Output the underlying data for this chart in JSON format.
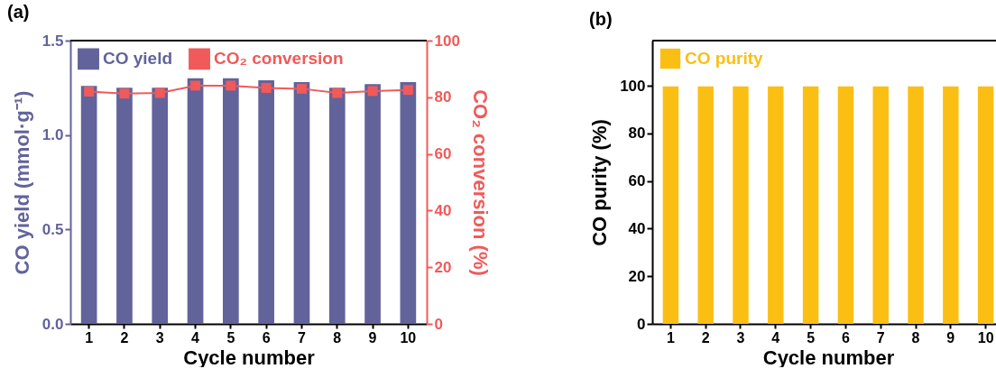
{
  "chart_data": [
    {
      "type": "bar",
      "title": "(a)",
      "xlabel": "Cycle number",
      "ylabel": "CO yield (mmol·g⁻¹)",
      "y2label": "CO₂ conversion (%)",
      "categories": [
        "1",
        "2",
        "3",
        "4",
        "5",
        "6",
        "7",
        "8",
        "9",
        "10"
      ],
      "series": [
        {
          "name": "CO yield",
          "color": "#62639b",
          "values": [
            1.26,
            1.25,
            1.25,
            1.3,
            1.3,
            1.29,
            1.28,
            1.25,
            1.27,
            1.28
          ]
        },
        {
          "name": "CO₂ conversion",
          "type": "line",
          "axis": "y2",
          "color": "#f05a5a",
          "values": [
            82.0,
            81.3,
            81.5,
            84.1,
            84.1,
            83.3,
            83.0,
            81.5,
            82.2,
            82.6
          ]
        }
      ],
      "ylim": [
        0,
        1.5
      ],
      "yticks": [
        {
          "value": 0,
          "label": "0.0"
        },
        0.5,
        {
          "value": 1,
          "label": "1.0"
        },
        1.5
      ],
      "y2lim": [
        0,
        100
      ],
      "y2ticks": [
        0,
        20,
        40,
        60,
        80,
        100
      ],
      "legend": "top left",
      "marker": "square",
      "grid": false
    },
    {
      "type": "bar",
      "title": "(b)",
      "xlabel": "Cycle number",
      "ylabel": "CO purity (%)",
      "categories": [
        "1",
        "2",
        "3",
        "4",
        "5",
        "6",
        "7",
        "8",
        "9",
        "10"
      ],
      "series": [
        {
          "name": "CO purity",
          "color": "#fbbf14",
          "values": [
            99.8,
            99.8,
            99.8,
            99.8,
            99.8,
            99.8,
            99.8,
            99.8,
            99.8,
            99.8
          ]
        }
      ],
      "ylim": [
        0,
        119
      ],
      "yticks": [
        0,
        20,
        40,
        60,
        80,
        100
      ],
      "legend": "top left",
      "grid": false
    }
  ]
}
